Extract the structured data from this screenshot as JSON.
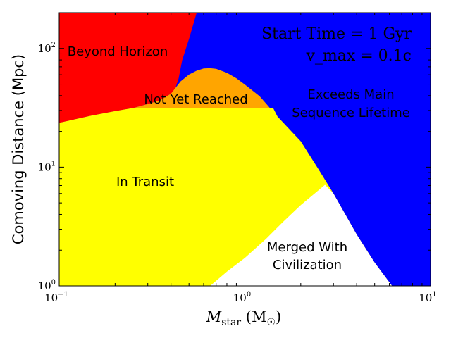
{
  "chart_data": {
    "type": "area",
    "xlabel": "M_star (M_☉)",
    "xlabel_parts": {
      "main": "M",
      "sub": "star",
      "unit_open": " (M",
      "unit_sub": "☉",
      "unit_close": ")"
    },
    "ylabel": "Comoving Distance (Mpc)",
    "xscale": "log",
    "yscale": "log",
    "xlim": [
      0.1,
      10
    ],
    "ylim": [
      1,
      200
    ],
    "x_ticks": [
      {
        "value": 0.1,
        "base": "10",
        "exp": "−1"
      },
      {
        "value": 1,
        "base": "10",
        "exp": "0"
      },
      {
        "value": 10,
        "base": "10",
        "exp": "1"
      }
    ],
    "y_ticks": [
      {
        "value": 1,
        "base": "10",
        "exp": "0"
      },
      {
        "value": 10,
        "base": "10",
        "exp": "1"
      },
      {
        "value": 100,
        "base": "10",
        "exp": "2"
      }
    ],
    "annotation": {
      "line1": "Start Time = 1 Gyr",
      "line2": "v_max = 0.1c"
    },
    "colors": {
      "beyond_horizon": "#ff0000",
      "exceeds_lifetime": "#0000ff",
      "not_yet_reached": "#ffa500",
      "in_transit": "#ffff00",
      "merged": "#ffffff"
    },
    "regions": {
      "beyond_horizon": {
        "label": "Beyond Horizon"
      },
      "not_yet_reached": {
        "label": "Not Yet Reached"
      },
      "exceeds_lifetime": {
        "label_lines": [
          "Exceeds Main",
          "Sequence Lifetime"
        ]
      },
      "in_transit": {
        "label": "In Transit"
      },
      "merged": {
        "label_lines": [
          "Merged With",
          "Civilization"
        ]
      }
    },
    "curves": {
      "horizon_boundary": [
        [
          0.1,
          23.6
        ],
        [
          0.15,
          27.2
        ],
        [
          0.2,
          29.6
        ],
        [
          0.25,
          31.5
        ],
        [
          0.3,
          34
        ],
        [
          0.35,
          36.7
        ],
        [
          0.4,
          41.6
        ],
        [
          0.42,
          45
        ],
        [
          0.44,
          56
        ],
        [
          0.46,
          80
        ],
        [
          0.5,
          120
        ],
        [
          0.55,
          200
        ]
      ],
      "lifetime_boundary": [
        [
          0.4,
          41.6
        ],
        [
          0.45,
          52.6
        ],
        [
          0.5,
          60.2
        ],
        [
          0.55,
          64.9
        ],
        [
          0.6,
          67.7
        ],
        [
          0.65,
          68.1
        ],
        [
          0.7,
          67.3
        ],
        [
          0.8,
          62.3
        ],
        [
          0.9,
          56.1
        ],
        [
          1.0,
          49.6
        ],
        [
          1.2,
          39.6
        ],
        [
          1.5,
          26.6
        ],
        [
          2.0,
          16.5
        ],
        [
          2.5,
          9.5
        ],
        [
          3.0,
          5.99
        ],
        [
          4.0,
          2.71
        ],
        [
          5.0,
          1.57
        ],
        [
          6.2,
          1.0
        ]
      ],
      "transit_ceiling": 31.5,
      "transit_boundary": [
        [
          2.7,
          7.1
        ],
        [
          2.0,
          4.79
        ],
        [
          1.6,
          3.44
        ],
        [
          1.3,
          2.49
        ],
        [
          1.0,
          1.72
        ],
        [
          0.8,
          1.32
        ],
        [
          0.65,
          1.0
        ]
      ]
    }
  }
}
